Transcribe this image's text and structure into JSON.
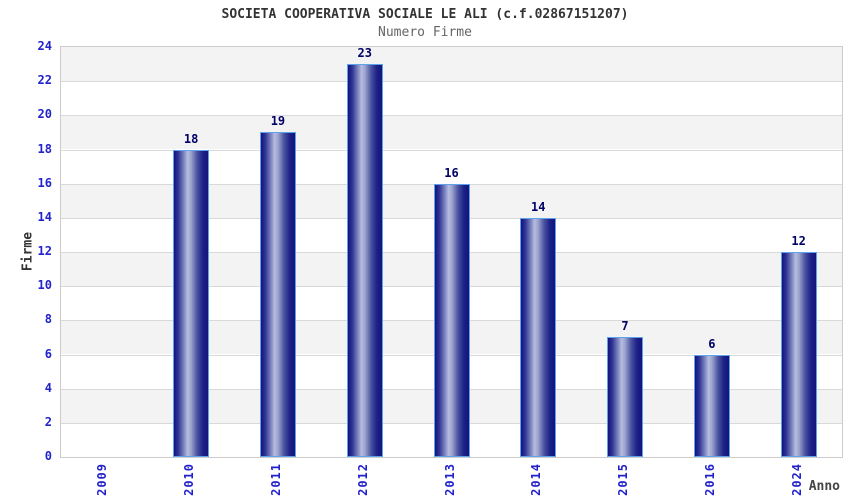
{
  "chart_data": {
    "type": "bar",
    "title": "SOCIETA COOPERATIVA SOCIALE LE ALI (c.f.02867151207)",
    "subtitle": "Numero Firme",
    "xlabel": "Anno",
    "ylabel": "Firme",
    "categories": [
      "2009",
      "2010",
      "2011",
      "2012",
      "2013",
      "2014",
      "2015",
      "2016",
      "2024"
    ],
    "values": [
      0,
      18,
      19,
      23,
      16,
      14,
      7,
      6,
      12
    ],
    "ylim": [
      0,
      24
    ],
    "ytick_step": 2,
    "grid": "horizontal gridlines with alternating gray/white bands",
    "legend_position": "none",
    "bars_with_zero_not_drawn": [
      "2009"
    ]
  },
  "colors": {
    "title_text": "#333333",
    "subtitle_text": "#666666",
    "tick_label_blue": "#2222cc",
    "bar_value_navy": "#000066",
    "axis_label_dark": "#444444",
    "band_gray": "#f3f3f3",
    "band_white": "#ffffff",
    "gridline": "#d9d9d9",
    "plot_border": "#cccccc",
    "bar_dark": "#14147c",
    "bar_highlight": "#b7bcdf",
    "bar_outline": "#5ea2ec"
  }
}
